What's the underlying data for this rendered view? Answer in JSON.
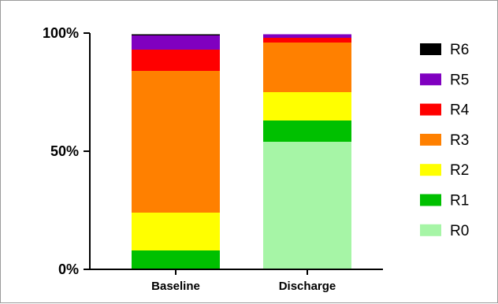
{
  "chart_data": {
    "type": "bar",
    "stacked": true,
    "categories": [
      "Baseline",
      "Discharge"
    ],
    "series": [
      {
        "name": "R0",
        "color": "#a6f5a6",
        "values": [
          0,
          54
        ]
      },
      {
        "name": "R1",
        "color": "#00c000",
        "values": [
          8,
          9
        ]
      },
      {
        "name": "R2",
        "color": "#ffff00",
        "values": [
          16,
          12
        ]
      },
      {
        "name": "R3",
        "color": "#ff8000",
        "values": [
          60,
          21
        ]
      },
      {
        "name": "R4",
        "color": "#ff0000",
        "values": [
          9,
          2
        ]
      },
      {
        "name": "R5",
        "color": "#8000c0",
        "values": [
          6,
          1.5
        ]
      },
      {
        "name": "R6",
        "color": "#000000",
        "values": [
          0.5,
          0
        ]
      }
    ],
    "ylim": [
      0,
      100
    ],
    "yticks": [
      "0%",
      "50%",
      "100%"
    ],
    "legend_placement": "right",
    "legend_order": [
      "R6",
      "R5",
      "R4",
      "R3",
      "R2",
      "R1",
      "R0"
    ]
  }
}
